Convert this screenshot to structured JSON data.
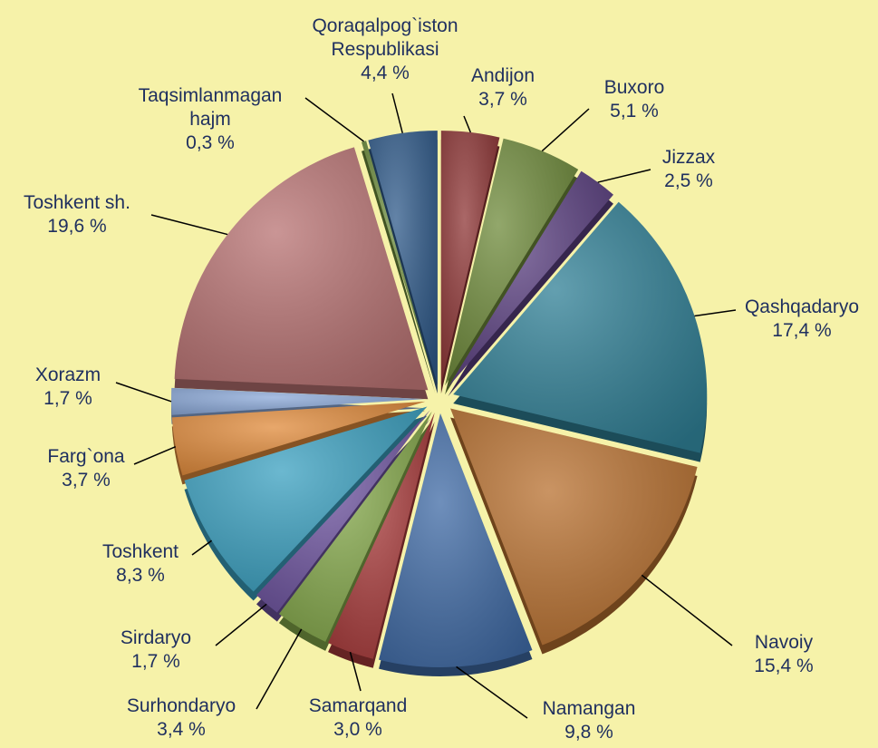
{
  "chart_data": {
    "type": "pie",
    "categories": [
      "Qoraqalpog`iston Respublikasi",
      "Andijon",
      "Buxoro",
      "Jizzax",
      "Qashqadaryo",
      "Navoiy",
      "Namangan",
      "Samarqand",
      "Surhondaryo",
      "Sirdaryo",
      "Toshkent",
      "Farg`ona",
      "Xorazm",
      "Toshkent sh.",
      "Taqsimlanmagan hajm"
    ],
    "values": [
      4.4,
      3.7,
      5.1,
      2.5,
      17.4,
      15.4,
      9.8,
      3.0,
      3.4,
      1.7,
      8.3,
      3.7,
      1.7,
      19.6,
      0.3
    ],
    "value_labels": [
      "4,4 %",
      "3,7 %",
      "5,1 %",
      "2,5 %",
      "17,4 %",
      "15,4 %",
      "9,8 %",
      "3,0 %",
      "3,4 %",
      "1,7 %",
      "8,3 %",
      "3,7 %",
      "1,7 %",
      "19,6 %",
      "0,3 %"
    ],
    "colors": [
      "#2f5a8a",
      "#8e3535",
      "#6e8a3a",
      "#5a3f80",
      "#2f7f95",
      "#b8702f",
      "#3f6aa5",
      "#a83a3a",
      "#84a84a",
      "#6e54a0",
      "#3aa0c0",
      "#e08a3a",
      "#8aa8d8",
      "#b87272",
      "#6a8a3a"
    ]
  }
}
